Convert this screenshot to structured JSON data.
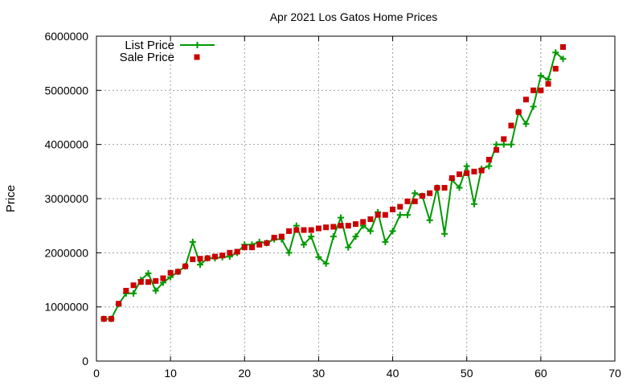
{
  "chart_data": {
    "type": "line",
    "title": "Apr 2021 Los Gatos Home Prices",
    "xlabel": "",
    "ylabel": "Price",
    "xlim": [
      0,
      70
    ],
    "ylim": [
      0,
      6000000
    ],
    "x_ticks": [
      "0",
      "10",
      "20",
      "30",
      "40",
      "50",
      "60",
      "70"
    ],
    "y_ticks": [
      "0",
      "1000000",
      "2000000",
      "3000000",
      "4000000",
      "5000000",
      "6000000"
    ],
    "grid": true,
    "legend_position": "top-left",
    "series": [
      {
        "name": "List Price",
        "style": "lines+points",
        "marker": "plus",
        "color": "#009900",
        "x": [
          1,
          2,
          3,
          4,
          5,
          6,
          7,
          8,
          9,
          10,
          11,
          12,
          13,
          14,
          15,
          16,
          17,
          18,
          19,
          20,
          21,
          22,
          23,
          24,
          25,
          26,
          27,
          28,
          29,
          30,
          31,
          32,
          33,
          34,
          35,
          36,
          37,
          38,
          39,
          40,
          41,
          42,
          43,
          44,
          45,
          46,
          47,
          48,
          49,
          50,
          51,
          52,
          53,
          54,
          55,
          56,
          57,
          58,
          59,
          60,
          61,
          62,
          63
        ],
        "y": [
          780000,
          780000,
          1050000,
          1250000,
          1250000,
          1500000,
          1620000,
          1300000,
          1450000,
          1550000,
          1650000,
          1750000,
          2200000,
          1780000,
          1900000,
          1900000,
          1920000,
          1930000,
          2000000,
          2150000,
          2150000,
          2200000,
          2180000,
          2250000,
          2250000,
          2000000,
          2500000,
          2150000,
          2300000,
          1920000,
          1800000,
          2300000,
          2650000,
          2100000,
          2300000,
          2500000,
          2400000,
          2750000,
          2200000,
          2400000,
          2700000,
          2700000,
          3100000,
          3050000,
          2600000,
          3200000,
          2350000,
          3350000,
          3200000,
          3600000,
          2900000,
          3550000,
          3600000,
          4000000,
          4000000,
          4000000,
          4600000,
          4380000,
          4700000,
          5270000,
          5200000,
          5700000,
          5580000
        ]
      },
      {
        "name": "Sale Price",
        "style": "points",
        "marker": "square",
        "color": "#cc0000",
        "x": [
          1,
          2,
          3,
          4,
          5,
          6,
          7,
          8,
          9,
          10,
          11,
          12,
          13,
          14,
          15,
          16,
          17,
          18,
          19,
          20,
          21,
          22,
          23,
          24,
          25,
          26,
          27,
          28,
          29,
          30,
          31,
          32,
          33,
          34,
          35,
          36,
          37,
          38,
          39,
          40,
          41,
          42,
          43,
          44,
          45,
          46,
          47,
          48,
          49,
          50,
          51,
          52,
          53,
          54,
          55,
          56,
          57,
          58,
          59,
          60,
          61,
          62,
          63
        ],
        "y": [
          780000,
          780000,
          1060000,
          1300000,
          1400000,
          1460000,
          1460000,
          1480000,
          1530000,
          1630000,
          1650000,
          1750000,
          1880000,
          1890000,
          1900000,
          1930000,
          1950000,
          2000000,
          2020000,
          2100000,
          2100000,
          2150000,
          2180000,
          2280000,
          2300000,
          2400000,
          2420000,
          2420000,
          2420000,
          2450000,
          2470000,
          2480000,
          2500000,
          2500000,
          2530000,
          2570000,
          2620000,
          2700000,
          2700000,
          2800000,
          2850000,
          2950000,
          2950000,
          3050000,
          3100000,
          3200000,
          3200000,
          3380000,
          3450000,
          3470000,
          3500000,
          3520000,
          3720000,
          3900000,
          4100000,
          4350000,
          4600000,
          4830000,
          5000000,
          5000000,
          5120000,
          5400000,
          5800000
        ]
      }
    ]
  }
}
